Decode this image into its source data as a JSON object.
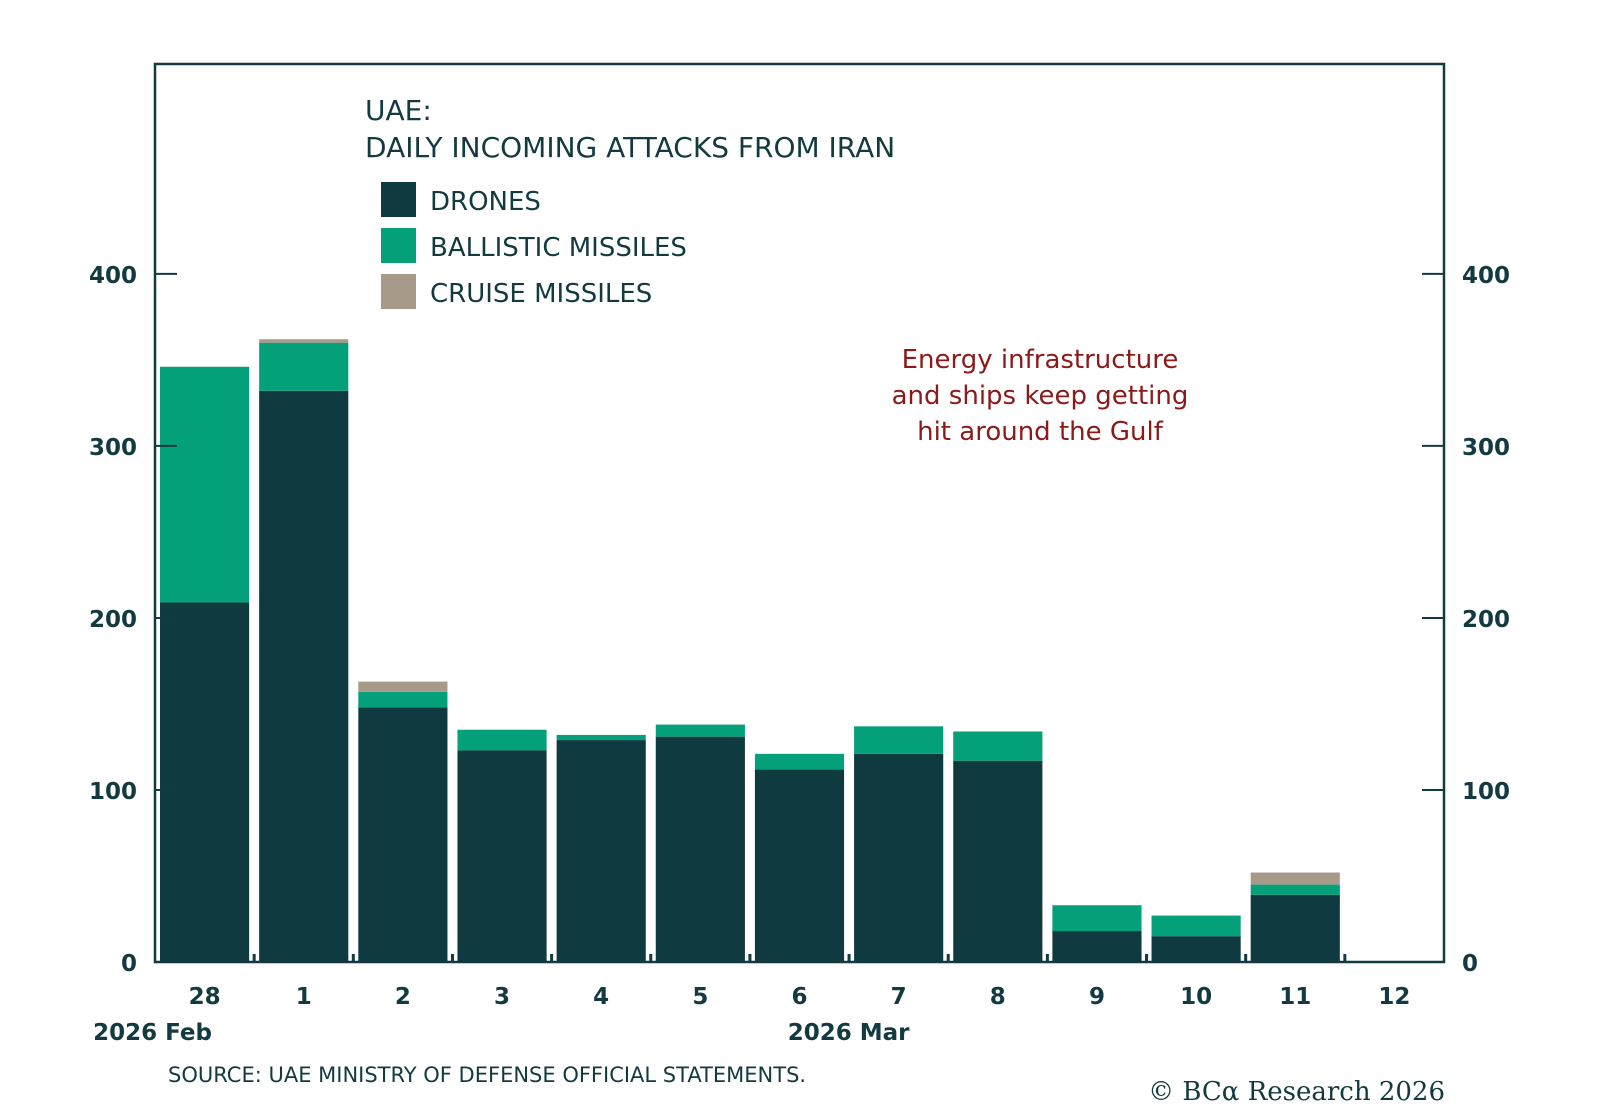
{
  "chart_data": {
    "type": "bar",
    "stacked": true,
    "title": "UAE:",
    "subtitle": "DAILY INCOMING ATTACKS FROM IRAN",
    "xlabel": "",
    "ylabel": "",
    "categories": [
      "28",
      "1",
      "2",
      "3",
      "4",
      "5",
      "6",
      "7",
      "8",
      "9",
      "10",
      "11",
      "12"
    ],
    "month_labels": [
      {
        "category": "28",
        "label": "2026 Feb"
      },
      {
        "category": "7",
        "label": "2026 Mar"
      }
    ],
    "series": [
      {
        "name": "DRONES",
        "color": "#0f3a40",
        "values": [
          209,
          332,
          148,
          123,
          129,
          131,
          112,
          121,
          117,
          18,
          15,
          39,
          0
        ]
      },
      {
        "name": "BALLISTIC MISSILES",
        "color": "#04a07a",
        "values": [
          137,
          28,
          9,
          12,
          3,
          7,
          9,
          16,
          17,
          15,
          12,
          6,
          0
        ]
      },
      {
        "name": "CRUISE MISSILES",
        "color": "#a89a88",
        "values": [
          0,
          2,
          6,
          0,
          0,
          0,
          0,
          0,
          0,
          0,
          0,
          7,
          0
        ]
      }
    ],
    "ylim": [
      0,
      522
    ],
    "yticks": [
      0,
      100,
      200,
      300,
      400
    ],
    "y_axis_sides": [
      "left",
      "right"
    ],
    "grid": false,
    "legend_placement": "top-left",
    "annotation": [
      "Energy infrastructure",
      "and ships keep getting",
      "hit around the Gulf"
    ],
    "annotation_color": "#8b1a1a",
    "source": "SOURCE: UAE MINISTRY OF DEFENSE OFFICIAL STATEMENTS.",
    "copyright": "© BCα Research 2026"
  }
}
